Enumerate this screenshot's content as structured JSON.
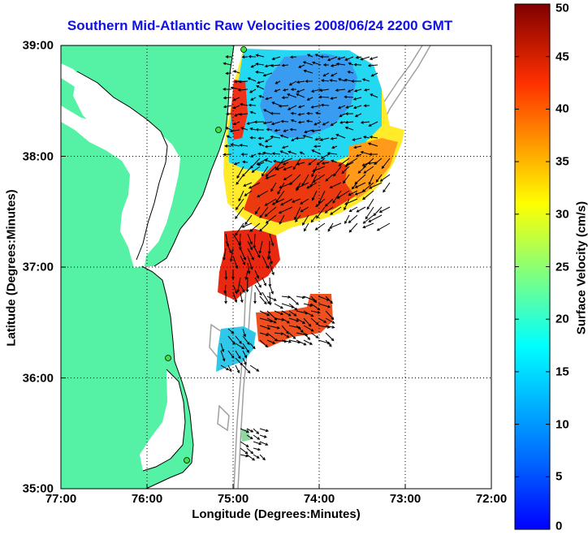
{
  "title": "Southern Mid-Atlantic Raw Velocities 2008/06/24 2200 GMT",
  "x_axis": {
    "label": "Longitude (Degrees:Minutes)",
    "ticks": [
      "77:00",
      "76:00",
      "75:00",
      "74:00",
      "73:00",
      "72:00"
    ]
  },
  "y_axis": {
    "label": "Latitude (Degrees:Minutes)",
    "ticks": [
      "35:00",
      "36:00",
      "37:00",
      "38:00",
      "39:00"
    ]
  },
  "colorbar": {
    "label": "Surface Velocity (cm/s)",
    "ticks": [
      "0",
      "5",
      "10",
      "15",
      "20",
      "25",
      "30",
      "35",
      "40",
      "45",
      "50"
    ],
    "min": 0,
    "max": 50,
    "colormap": "jet"
  },
  "map": {
    "lon_range": [
      -77,
      -72
    ],
    "lat_range": [
      35,
      39
    ],
    "land_color": "#55f2a6",
    "ocean_color": "#ffffff",
    "bathymetry_color": "#a0a0a0",
    "station_color": "#40e040",
    "vector_color": "#000000",
    "grid": "dotted"
  }
}
